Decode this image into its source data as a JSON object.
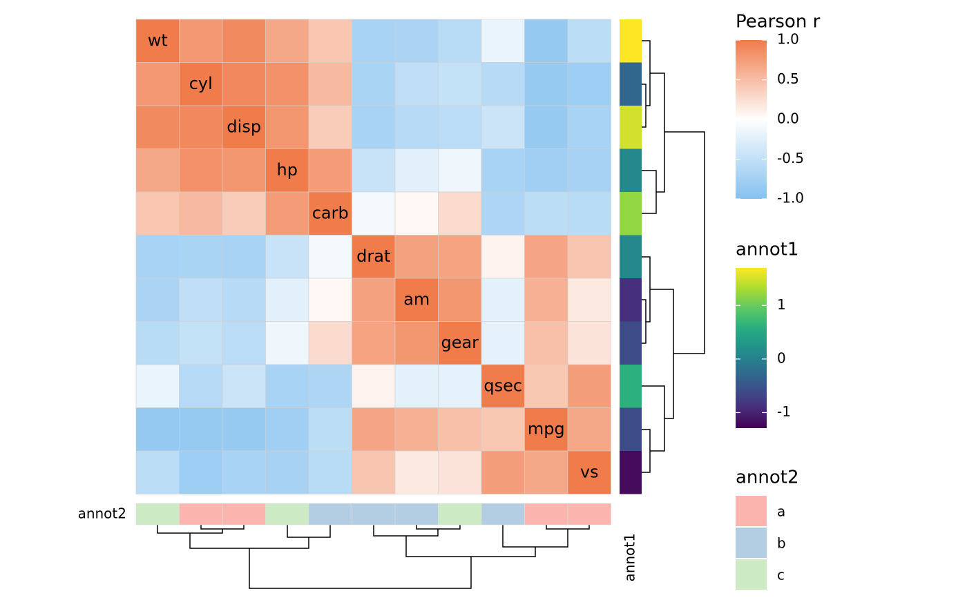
{
  "chart_data": {
    "type": "heatmap",
    "labels": [
      "wt",
      "cyl",
      "disp",
      "hp",
      "carb",
      "drat",
      "am",
      "gear",
      "qsec",
      "mpg",
      "vs"
    ],
    "matrix": [
      [
        1,
        0.78,
        0.89,
        0.66,
        0.43,
        -0.71,
        -0.69,
        -0.58,
        -0.17,
        -0.87,
        -0.55
      ],
      [
        0.78,
        1,
        0.9,
        0.83,
        0.53,
        -0.7,
        -0.52,
        -0.49,
        -0.59,
        -0.85,
        -0.81
      ],
      [
        0.89,
        0.9,
        1,
        0.79,
        0.39,
        -0.71,
        -0.59,
        -0.56,
        -0.43,
        -0.85,
        -0.71
      ],
      [
        0.66,
        0.83,
        0.79,
        1,
        0.75,
        -0.45,
        -0.24,
        -0.13,
        -0.71,
        -0.78,
        -0.72
      ],
      [
        0.43,
        0.53,
        0.39,
        0.75,
        1,
        -0.09,
        0.06,
        0.27,
        -0.66,
        -0.55,
        -0.57
      ],
      [
        -0.71,
        -0.7,
        -0.71,
        -0.45,
        -0.09,
        1,
        0.71,
        0.7,
        0.09,
        0.68,
        0.44
      ],
      [
        -0.69,
        -0.52,
        -0.59,
        -0.24,
        0.06,
        0.71,
        1,
        0.79,
        -0.23,
        0.6,
        0.17
      ],
      [
        -0.58,
        -0.49,
        -0.56,
        -0.13,
        0.27,
        0.7,
        0.79,
        1,
        -0.21,
        0.48,
        0.21
      ],
      [
        -0.17,
        -0.59,
        -0.43,
        -0.71,
        -0.66,
        0.09,
        -0.23,
        -0.21,
        1,
        0.42,
        0.74
      ],
      [
        -0.87,
        -0.85,
        -0.85,
        -0.78,
        -0.55,
        0.68,
        0.6,
        0.48,
        0.42,
        1,
        0.66
      ],
      [
        -0.55,
        -0.81,
        -0.71,
        -0.72,
        -0.57,
        0.44,
        0.17,
        0.21,
        0.74,
        0.66,
        1
      ]
    ],
    "colorbar": {
      "title": "Pearson r",
      "colors": [
        "#85c1ef",
        "#ffffff",
        "#f07b4b"
      ],
      "lim": [
        -1,
        1
      ],
      "ticks": [
        {
          "value": 1,
          "label": "1.0"
        },
        0.5,
        {
          "value": 0,
          "label": "0.0"
        },
        -0.5,
        {
          "value": -1,
          "label": "-1.0"
        }
      ]
    },
    "annot1": {
      "title": "annot1",
      "values": [
        1.7,
        -0.3,
        1.5,
        0.1,
        1.2,
        0.1,
        -0.9,
        -0.6,
        0.6,
        -0.6,
        -1.2
      ],
      "colors": [
        "#440154",
        "#472d7b",
        "#3b528b",
        "#2c728e",
        "#21918c",
        "#28ae80",
        "#5ec962",
        "#addc30",
        "#fde725"
      ],
      "lim": [
        -1.29,
        1.7
      ],
      "ticks": [
        1,
        0,
        -1
      ]
    },
    "annot2": {
      "title": "annot2",
      "values": [
        "c",
        "a",
        "a",
        "c",
        "b",
        "b",
        "b",
        "c",
        "b",
        "a",
        "a"
      ],
      "levels": [
        "a",
        "b",
        "c"
      ],
      "colors": [
        "#fbb4ae",
        "#b3cde3",
        "#ccebc5"
      ]
    }
  }
}
